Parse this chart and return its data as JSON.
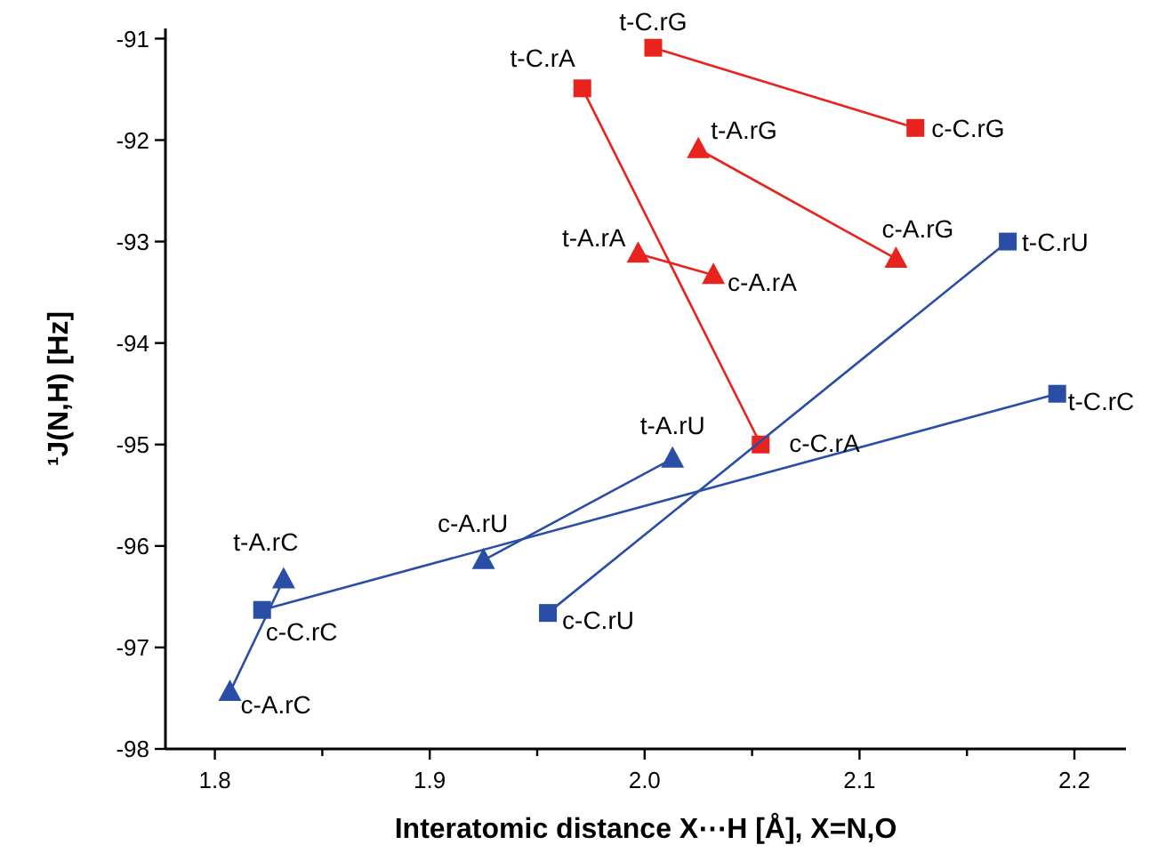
{
  "chart_data": {
    "type": "line",
    "xlabel": "Interatomic distance X⋯H [Å], X=N,O",
    "ylabel": "¹J(N,H) [Hz]",
    "xlim": [
      1.777,
      2.224
    ],
    "ylim": [
      -98,
      -90.9
    ],
    "xticks": [
      1.8,
      {
        "value": 1.85,
        "label": null
      },
      1.9,
      {
        "value": 1.95,
        "label": null
      },
      {
        "value": 2.0,
        "label": "2.0"
      },
      {
        "value": 2.05,
        "label": null
      },
      2.1,
      {
        "value": 2.15,
        "label": null
      },
      2.2
    ],
    "yticks": [
      -98,
      -97,
      -96,
      -95,
      -94,
      -93,
      -92,
      -91
    ],
    "grid": false,
    "line_style": "solid",
    "series": [
      {
        "color": "#e8231e",
        "marker": "square",
        "x": [
          2.004,
          2.126
        ],
        "values": [
          -91.09,
          -91.88
        ]
      },
      {
        "color": "#e8231e",
        "marker": "square",
        "x": [
          1.971,
          2.054
        ],
        "values": [
          -91.49,
          -95.0
        ]
      },
      {
        "color": "#e8231e",
        "marker": "triangle",
        "x": [
          2.025,
          2.117
        ],
        "values": [
          -92.09,
          -93.17
        ]
      },
      {
        "color": "#e8231e",
        "marker": "triangle",
        "x": [
          1.997,
          2.032
        ],
        "values": [
          -93.12,
          -93.33
        ]
      },
      {
        "color": "#2a4ea6",
        "marker": "square",
        "x": [
          1.955,
          2.169
        ],
        "values": [
          -96.66,
          -93.0
        ]
      },
      {
        "color": "#2a4ea6",
        "marker": "square",
        "x": [
          1.822,
          2.192
        ],
        "values": [
          -96.63,
          -94.5
        ]
      },
      {
        "color": "#2a4ea6",
        "marker": "triangle",
        "x": [
          1.925,
          2.013
        ],
        "values": [
          -96.14,
          -95.14
        ]
      },
      {
        "color": "#2a4ea6",
        "marker": "triangle",
        "x": [
          1.807,
          1.832
        ],
        "values": [
          -97.44,
          -96.33
        ]
      }
    ],
    "annotations": [
      {
        "text": "t-C.rG",
        "x": 2.004,
        "y": -91.09
      },
      {
        "text": "c-C.rG",
        "x": 2.126,
        "y": -91.88
      },
      {
        "text": "t-C.rA",
        "x": 1.971,
        "y": -91.49
      },
      {
        "text": "t-A.rG",
        "x": 2.025,
        "y": -92.09
      },
      {
        "text": "c-A.rG",
        "x": 2.117,
        "y": -93.17
      },
      {
        "text": "t-A.rA",
        "x": 1.997,
        "y": -93.12
      },
      {
        "text": "c-A.rA",
        "x": 2.032,
        "y": -93.33
      },
      {
        "text": "t-C.rU",
        "x": 2.169,
        "y": -93.0
      },
      {
        "text": "t-C.rC",
        "x": 2.192,
        "y": -94.5
      },
      {
        "text": "c-C.rA",
        "x": 2.054,
        "y": -95.0
      },
      {
        "text": "t-A.rU",
        "x": 2.013,
        "y": -95.14
      },
      {
        "text": "c-A.rU",
        "x": 1.925,
        "y": -96.14
      },
      {
        "text": "t-A.rC",
        "x": 1.832,
        "y": -96.33
      },
      {
        "text": "c-C.rC",
        "x": 1.822,
        "y": -96.63
      },
      {
        "text": "c-A.rC",
        "x": 1.807,
        "y": -97.44
      },
      {
        "text": "c-C.rU",
        "x": 1.955,
        "y": -96.66
      }
    ]
  }
}
